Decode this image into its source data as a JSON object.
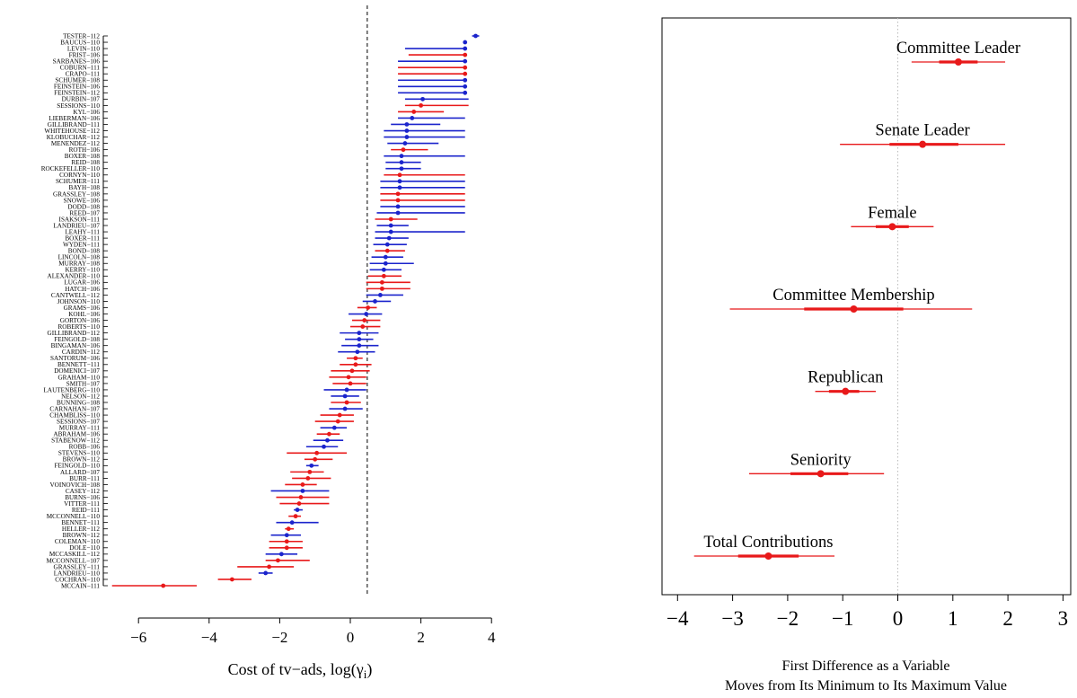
{
  "chart_data": [
    {
      "type": "scatter",
      "subtype": "dot-and-interval",
      "xlabel": "Cost of tv−ads, log(γ",
      "xlabel_subscript": "i",
      "xlabel_tail": ")",
      "xlim": [
        -6.9,
        4.0
      ],
      "xticks": [
        -6,
        -4,
        -2,
        0,
        2,
        4
      ],
      "tick_labels": [
        "−6",
        "−4",
        "−2",
        "0",
        "2",
        "4"
      ],
      "reference_line": 0.48,
      "reference_style": "dashed",
      "series_colors": {
        "R": "#e8191a",
        "D": "#1b24cc"
      },
      "rows": [
        {
          "label": "TESTER−112",
          "party": "D",
          "est": 3.55,
          "lo": 3.45,
          "hi": 3.65
        },
        {
          "label": "BAUCUS−110",
          "party": "D",
          "est": 3.25,
          "lo": 3.25,
          "hi": 3.25
        },
        {
          "label": "LEVIN−110",
          "party": "D",
          "est": 3.25,
          "lo": 1.55,
          "hi": 3.25
        },
        {
          "label": "FRIST−106",
          "party": "R",
          "est": 3.25,
          "lo": 1.65,
          "hi": 3.25
        },
        {
          "label": "SARBANES−106",
          "party": "D",
          "est": 3.25,
          "lo": 1.35,
          "hi": 3.25
        },
        {
          "label": "COBURN−111",
          "party": "R",
          "est": 3.25,
          "lo": 1.35,
          "hi": 3.25
        },
        {
          "label": "CRAPO−111",
          "party": "R",
          "est": 3.25,
          "lo": 1.35,
          "hi": 3.25
        },
        {
          "label": "SCHUMER−108",
          "party": "D",
          "est": 3.25,
          "lo": 1.35,
          "hi": 3.25
        },
        {
          "label": "FEINSTEIN−106",
          "party": "D",
          "est": 3.25,
          "lo": 1.35,
          "hi": 3.25
        },
        {
          "label": "FEINSTEIN−112",
          "party": "D",
          "est": 3.25,
          "lo": 1.35,
          "hi": 3.25
        },
        {
          "label": "DURBIN−107",
          "party": "D",
          "est": 2.05,
          "lo": 1.55,
          "hi": 3.35
        },
        {
          "label": "SESSIONS−110",
          "party": "R",
          "est": 2.0,
          "lo": 1.55,
          "hi": 3.35
        },
        {
          "label": "KYL−106",
          "party": "R",
          "est": 1.8,
          "lo": 1.35,
          "hi": 2.65
        },
        {
          "label": "LIEBERMAN−106",
          "party": "D",
          "est": 1.75,
          "lo": 1.35,
          "hi": 3.25
        },
        {
          "label": "GILLIBRAND−111",
          "party": "D",
          "est": 1.6,
          "lo": 1.15,
          "hi": 2.55
        },
        {
          "label": "WHITEHOUSE−112",
          "party": "D",
          "est": 1.6,
          "lo": 0.95,
          "hi": 3.25
        },
        {
          "label": "KLOBUCHAR−112",
          "party": "D",
          "est": 1.6,
          "lo": 0.95,
          "hi": 3.25
        },
        {
          "label": "MENENDEZ−112",
          "party": "D",
          "est": 1.55,
          "lo": 1.05,
          "hi": 2.5
        },
        {
          "label": "ROTH−106",
          "party": "R",
          "est": 1.5,
          "lo": 1.15,
          "hi": 2.2
        },
        {
          "label": "BOXER−108",
          "party": "D",
          "est": 1.45,
          "lo": 0.95,
          "hi": 3.25
        },
        {
          "label": "REID−108",
          "party": "D",
          "est": 1.45,
          "lo": 1.0,
          "hi": 2.0
        },
        {
          "label": "ROCKEFELLER−110",
          "party": "D",
          "est": 1.45,
          "lo": 1.0,
          "hi": 2.0
        },
        {
          "label": "CORNYN−110",
          "party": "R",
          "est": 1.4,
          "lo": 0.95,
          "hi": 3.25
        },
        {
          "label": "SCHUMER−111",
          "party": "D",
          "est": 1.4,
          "lo": 0.85,
          "hi": 3.25
        },
        {
          "label": "BAYH−108",
          "party": "D",
          "est": 1.4,
          "lo": 0.85,
          "hi": 3.25
        },
        {
          "label": "GRASSLEY−108",
          "party": "R",
          "est": 1.35,
          "lo": 0.85,
          "hi": 3.25
        },
        {
          "label": "SNOWE−106",
          "party": "R",
          "est": 1.35,
          "lo": 0.85,
          "hi": 3.25
        },
        {
          "label": "DODD−108",
          "party": "D",
          "est": 1.35,
          "lo": 0.85,
          "hi": 3.25
        },
        {
          "label": "REED−107",
          "party": "D",
          "est": 1.35,
          "lo": 0.75,
          "hi": 3.25
        },
        {
          "label": "ISAKSON−111",
          "party": "R",
          "est": 1.15,
          "lo": 0.7,
          "hi": 1.9
        },
        {
          "label": "LANDRIEU−107",
          "party": "D",
          "est": 1.15,
          "lo": 0.75,
          "hi": 1.65
        },
        {
          "label": "LEAHY−111",
          "party": "D",
          "est": 1.15,
          "lo": 0.7,
          "hi": 3.25
        },
        {
          "label": "BOXER−111",
          "party": "D",
          "est": 1.1,
          "lo": 0.7,
          "hi": 1.65
        },
        {
          "label": "WYDEN−111",
          "party": "D",
          "est": 1.05,
          "lo": 0.65,
          "hi": 1.6
        },
        {
          "label": "BOND−108",
          "party": "R",
          "est": 1.05,
          "lo": 0.7,
          "hi": 1.55
        },
        {
          "label": "LINCOLN−108",
          "party": "D",
          "est": 1.0,
          "lo": 0.6,
          "hi": 1.5
        },
        {
          "label": "MURRAY−108",
          "party": "D",
          "est": 1.0,
          "lo": 0.55,
          "hi": 1.8
        },
        {
          "label": "KERRY−110",
          "party": "D",
          "est": 0.95,
          "lo": 0.55,
          "hi": 1.45
        },
        {
          "label": "ALEXANDER−110",
          "party": "R",
          "est": 0.95,
          "lo": 0.5,
          "hi": 1.45
        },
        {
          "label": "LUGAR−106",
          "party": "R",
          "est": 0.9,
          "lo": 0.45,
          "hi": 1.7
        },
        {
          "label": "HATCH−106",
          "party": "R",
          "est": 0.9,
          "lo": 0.45,
          "hi": 1.7
        },
        {
          "label": "CANTWELL−112",
          "party": "D",
          "est": 0.85,
          "lo": 0.45,
          "hi": 1.5
        },
        {
          "label": "JOHNSON−110",
          "party": "D",
          "est": 0.7,
          "lo": 0.35,
          "hi": 1.15
        },
        {
          "label": "GRAMS−106",
          "party": "R",
          "est": 0.5,
          "lo": 0.2,
          "hi": 0.75
        },
        {
          "label": "KOHL−106",
          "party": "D",
          "est": 0.45,
          "lo": -0.05,
          "hi": 0.9
        },
        {
          "label": "GORTON−106",
          "party": "R",
          "est": 0.4,
          "lo": 0.05,
          "hi": 0.85
        },
        {
          "label": "ROBERTS−110",
          "party": "R",
          "est": 0.35,
          "lo": 0.0,
          "hi": 0.85
        },
        {
          "label": "GILLIBRAND−112",
          "party": "D",
          "est": 0.25,
          "lo": -0.3,
          "hi": 0.8
        },
        {
          "label": "FEINGOLD−108",
          "party": "D",
          "est": 0.25,
          "lo": -0.15,
          "hi": 0.65
        },
        {
          "label": "BINGAMAN−106",
          "party": "D",
          "est": 0.25,
          "lo": -0.25,
          "hi": 0.8
        },
        {
          "label": "CARDIN−112",
          "party": "D",
          "est": 0.2,
          "lo": -0.35,
          "hi": 0.7
        },
        {
          "label": "SANTORUM−106",
          "party": "R",
          "est": 0.15,
          "lo": -0.1,
          "hi": 0.35
        },
        {
          "label": "BENNETT−111",
          "party": "R",
          "est": 0.15,
          "lo": -0.3,
          "hi": 0.6
        },
        {
          "label": "DOMENICI−107",
          "party": "R",
          "est": 0.05,
          "lo": -0.55,
          "hi": 0.55
        },
        {
          "label": "GRAHAM−110",
          "party": "R",
          "est": -0.05,
          "lo": -0.6,
          "hi": 0.45
        },
        {
          "label": "SMITH−107",
          "party": "R",
          "est": 0.0,
          "lo": -0.5,
          "hi": 0.45
        },
        {
          "label": "LAUTENBERG−110",
          "party": "D",
          "est": -0.1,
          "lo": -0.75,
          "hi": 0.45
        },
        {
          "label": "NELSON−112",
          "party": "D",
          "est": -0.15,
          "lo": -0.55,
          "hi": 0.25
        },
        {
          "label": "BUNNING−108",
          "party": "R",
          "est": -0.1,
          "lo": -0.55,
          "hi": 0.3
        },
        {
          "label": "CARNAHAN−107",
          "party": "D",
          "est": -0.15,
          "lo": -0.6,
          "hi": 0.35
        },
        {
          "label": "CHAMBLISS−110",
          "party": "R",
          "est": -0.3,
          "lo": -0.85,
          "hi": 0.1
        },
        {
          "label": "SESSIONS−107",
          "party": "R",
          "est": -0.35,
          "lo": -1.0,
          "hi": 0.1
        },
        {
          "label": "MURRAY−111",
          "party": "D",
          "est": -0.45,
          "lo": -0.85,
          "hi": -0.1
        },
        {
          "label": "ABRAHAM−106",
          "party": "R",
          "est": -0.6,
          "lo": -0.95,
          "hi": -0.3
        },
        {
          "label": "STABENOW−112",
          "party": "D",
          "est": -0.65,
          "lo": -1.05,
          "hi": -0.2
        },
        {
          "label": "ROBB−106",
          "party": "D",
          "est": -0.75,
          "lo": -1.25,
          "hi": -0.35
        },
        {
          "label": "STEVENS−110",
          "party": "R",
          "est": -0.95,
          "lo": -1.8,
          "hi": -0.1
        },
        {
          "label": "BROWN−112",
          "party": "R",
          "est": -1.0,
          "lo": -1.3,
          "hi": -0.5
        },
        {
          "label": "FEINGOLD−110",
          "party": "D",
          "est": -1.1,
          "lo": -1.25,
          "hi": -0.9
        },
        {
          "label": "ALLARD−107",
          "party": "R",
          "est": -1.15,
          "lo": -1.7,
          "hi": -0.75
        },
        {
          "label": "BURR−111",
          "party": "R",
          "est": -1.2,
          "lo": -1.65,
          "hi": -0.55
        },
        {
          "label": "VOINOVICH−108",
          "party": "R",
          "est": -1.35,
          "lo": -1.85,
          "hi": -0.95
        },
        {
          "label": "CASEY−112",
          "party": "D",
          "est": -1.35,
          "lo": -2.25,
          "hi": -0.6
        },
        {
          "label": "BURNS−106",
          "party": "R",
          "est": -1.4,
          "lo": -2.1,
          "hi": -0.6
        },
        {
          "label": "VITTER−111",
          "party": "R",
          "est": -1.45,
          "lo": -2.0,
          "hi": -0.6
        },
        {
          "label": "REID−111",
          "party": "D",
          "est": -1.5,
          "lo": -1.6,
          "hi": -1.35
        },
        {
          "label": "MCCONNELL−110",
          "party": "R",
          "est": -1.55,
          "lo": -1.75,
          "hi": -1.4
        },
        {
          "label": "BENNET−111",
          "party": "D",
          "est": -1.65,
          "lo": -2.1,
          "hi": -0.9
        },
        {
          "label": "HELLER−112",
          "party": "R",
          "est": -1.75,
          "lo": -1.85,
          "hi": -1.6
        },
        {
          "label": "BROWN−112",
          "party": "D",
          "est": -1.8,
          "lo": -2.25,
          "hi": -1.4
        },
        {
          "label": "COLEMAN−110",
          "party": "R",
          "est": -1.8,
          "lo": -2.3,
          "hi": -1.35
        },
        {
          "label": "DOLE−110",
          "party": "R",
          "est": -1.8,
          "lo": -2.3,
          "hi": -1.35
        },
        {
          "label": "MCCASKILL−112",
          "party": "D",
          "est": -1.95,
          "lo": -2.4,
          "hi": -1.5
        },
        {
          "label": "MCCONNELL−107",
          "party": "R",
          "est": -2.05,
          "lo": -2.4,
          "hi": -1.15
        },
        {
          "label": "GRASSLEY−111",
          "party": "R",
          "est": -2.3,
          "lo": -3.2,
          "hi": -1.6
        },
        {
          "label": "LANDRIEU−110",
          "party": "D",
          "est": -2.4,
          "lo": -2.6,
          "hi": -2.2
        },
        {
          "label": "COCHRAN−110",
          "party": "R",
          "est": -3.35,
          "lo": -3.75,
          "hi": -2.8
        },
        {
          "label": "MCCAIN−111",
          "party": "R",
          "est": -5.3,
          "lo": -6.75,
          "hi": -4.35
        }
      ]
    },
    {
      "type": "scatter",
      "subtype": "coefficient-plot",
      "xlabel_line1": "First Difference as a Variable",
      "xlabel_line2": "Moves from Its Minimum to Its Maximum Value",
      "xlim": [
        -4.3,
        3.3
      ],
      "xticks": [
        -4,
        -3,
        -2,
        -1,
        0,
        1,
        2,
        3
      ],
      "tick_labels": [
        "−4",
        "−3",
        "−2",
        "−1",
        "0",
        "1",
        "2",
        "3"
      ],
      "reference_line": 0,
      "reference_style": "dotted",
      "color": "#e8191a",
      "variables": [
        {
          "label": "Committee Leader",
          "est": 1.1,
          "lo50": 0.75,
          "hi50": 1.45,
          "lo95": 0.25,
          "hi95": 1.95
        },
        {
          "label": "Senate Leader",
          "est": 0.45,
          "lo50": -0.15,
          "hi50": 1.1,
          "lo95": -1.05,
          "hi95": 1.95
        },
        {
          "label": "Female",
          "est": -0.1,
          "lo50": -0.4,
          "hi50": 0.2,
          "lo95": -0.85,
          "hi95": 0.65
        },
        {
          "label": "Committee Membership",
          "est": -0.8,
          "lo50": -1.7,
          "hi50": 0.1,
          "lo95": -3.05,
          "hi95": 1.35
        },
        {
          "label": "Republican",
          "est": -0.95,
          "lo50": -1.25,
          "hi50": -0.7,
          "lo95": -1.5,
          "hi95": -0.4
        },
        {
          "label": "Seniority",
          "est": -1.4,
          "lo50": -1.95,
          "hi50": -0.9,
          "lo95": -2.7,
          "hi95": -0.25
        },
        {
          "label": "Total Contributions",
          "est": -2.35,
          "lo50": -2.9,
          "hi50": -1.8,
          "lo95": -3.7,
          "hi95": -1.15
        }
      ]
    }
  ]
}
